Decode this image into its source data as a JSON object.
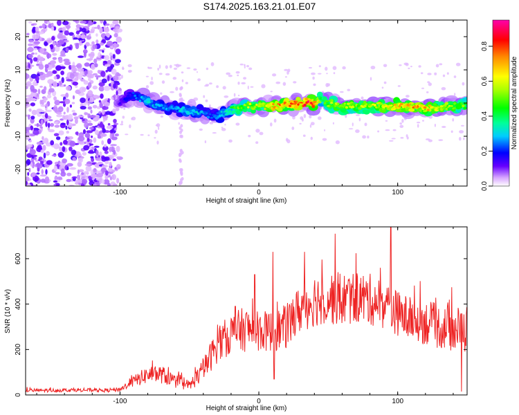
{
  "title": "S174.2025.163.21.01.E07",
  "colorbar": {
    "label": "Normalized spectral amplitude",
    "ticks": [
      "0.0",
      "0.2",
      "0.4",
      "0.6",
      "0.8"
    ],
    "range": [
      0,
      0.95
    ]
  },
  "chart_data": [
    {
      "type": "heatmap",
      "xlabel": "Height of straight line (km)",
      "ylabel": "Frequency (Hz)",
      "xlim": [
        -168,
        150
      ],
      "ylim": [
        -25,
        25
      ],
      "xticks": [
        "-100",
        "0",
        "100"
      ],
      "yticks": [
        "-20",
        "-10",
        "0",
        "10",
        "20"
      ],
      "noise_region_x": [
        -168,
        -100
      ],
      "ridge": {
        "x": [
          -100,
          -95,
          -90,
          -85,
          -80,
          -75,
          -70,
          -65,
          -60,
          -55,
          -50,
          -45,
          -40,
          -35,
          -30,
          -25,
          -20,
          -15,
          -10,
          -5,
          0,
          10,
          20,
          30,
          40,
          45,
          50,
          60,
          70,
          80,
          90,
          100,
          110,
          120,
          130,
          140,
          150
        ],
        "y": [
          0,
          2,
          2.5,
          1.5,
          0.5,
          -0.5,
          -1,
          -1.5,
          -1.5,
          -2,
          -2.5,
          -3,
          -3,
          -3.5,
          -4,
          -3,
          -2,
          -1.5,
          -1,
          -1,
          -1,
          -1,
          -0.5,
          0,
          0,
          1,
          0,
          -1,
          -1,
          -0.5,
          -1,
          -1,
          -1,
          -1.5,
          -1.5,
          -1,
          -0.5
        ],
        "amplitude": [
          0.15,
          0.2,
          0.25,
          0.3,
          0.35,
          0.3,
          0.3,
          0.3,
          0.3,
          0.35,
          0.35,
          0.35,
          0.3,
          0.25,
          0.3,
          0.35,
          0.45,
          0.55,
          0.6,
          0.65,
          0.65,
          0.8,
          0.85,
          0.9,
          0.95,
          0.5,
          0.6,
          0.65,
          0.6,
          0.65,
          0.7,
          0.75,
          0.8,
          0.75,
          0.7,
          0.6,
          0.55
        ]
      }
    },
    {
      "type": "line",
      "xlabel": "Height of straight line (km)",
      "ylabel": "SNR (10 * v/v)",
      "xlim": [
        -168,
        150
      ],
      "ylim": [
        0,
        740
      ],
      "xticks": [
        "-100",
        "0",
        "100"
      ],
      "yticks": [
        "0",
        "200",
        "400",
        "600"
      ],
      "color": "#ee2222",
      "series": [
        {
          "x": [
            -168,
            -150,
            -130,
            -110,
            -100,
            -90,
            -80,
            -70,
            -60,
            -50,
            -40,
            -30,
            -20,
            -10,
            0,
            10,
            20,
            30,
            40,
            50,
            60,
            70,
            80,
            90,
            100,
            110,
            120,
            130,
            140,
            150
          ],
          "y": [
            20,
            20,
            22,
            20,
            25,
            60,
            90,
            90,
            60,
            40,
            110,
            220,
            270,
            290,
            280,
            280,
            300,
            380,
            420,
            430,
            420,
            430,
            420,
            400,
            360,
            330,
            320,
            300,
            290,
            290
          ],
          "spread": [
            8,
            8,
            8,
            8,
            10,
            25,
            40,
            40,
            30,
            25,
            50,
            80,
            90,
            100,
            90,
            90,
            100,
            110,
            120,
            120,
            120,
            120,
            115,
            110,
            100,
            100,
            100,
            100,
            100,
            110
          ],
          "peaks": [
            [
              -17,
              390
            ],
            [
              -3,
              530
            ],
            [
              10,
              630
            ],
            [
              33,
              630
            ],
            [
              55,
              710
            ],
            [
              95,
              740
            ]
          ]
        }
      ]
    }
  ]
}
